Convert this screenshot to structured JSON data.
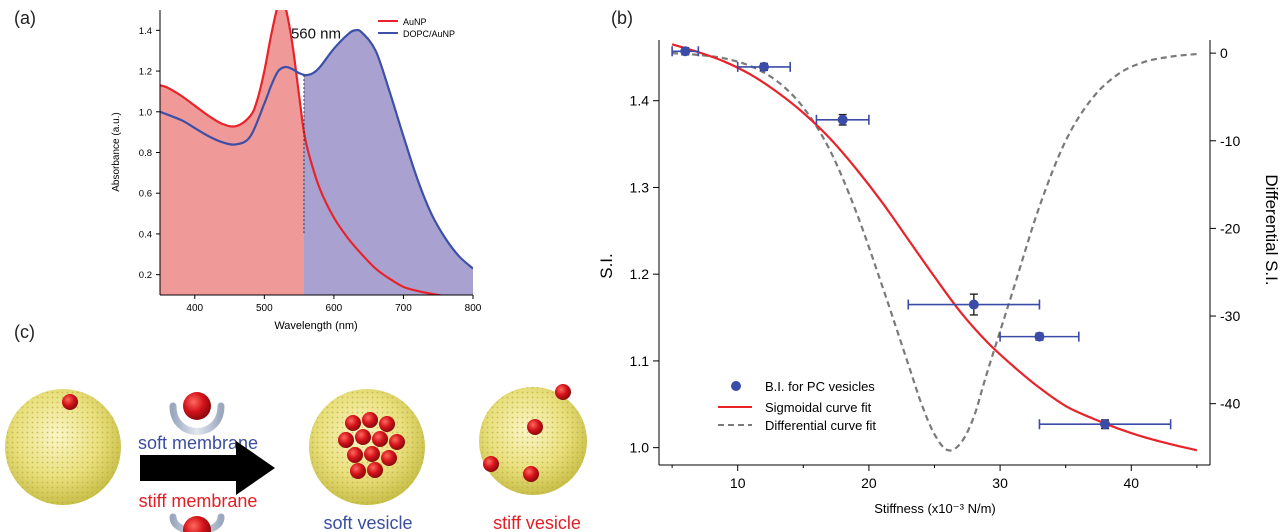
{
  "panels": {
    "a": "(a)",
    "b": "(b)",
    "c": "(c)"
  },
  "chart_data": [
    {
      "type": "area",
      "xlabel": "Wavelength (nm)",
      "ylabel": "Absorbance (a.u.)",
      "xlim": [
        350,
        800
      ],
      "ylim": [
        0.1,
        1.5
      ],
      "xticks": [
        400,
        500,
        600,
        700,
        800
      ],
      "yticks": [
        0.2,
        0.4,
        0.6,
        0.8,
        1.0,
        1.2,
        1.4
      ],
      "annotation": "560 nm",
      "split_x": 557,
      "legend_position": "top-right",
      "series": [
        {
          "name": "AuNP",
          "color": "#e8232a",
          "fill": "#ef9a98",
          "x": [
            350,
            360,
            380,
            400,
            420,
            440,
            460,
            480,
            490,
            500,
            510,
            520,
            525,
            530,
            540,
            550,
            557,
            565,
            580,
            600,
            620,
            640,
            660,
            680,
            700,
            720,
            750,
            780,
            800
          ],
          "y": [
            1.13,
            1.12,
            1.08,
            1.03,
            0.98,
            0.94,
            0.93,
            0.98,
            1.06,
            1.2,
            1.38,
            1.53,
            1.55,
            1.52,
            1.34,
            1.08,
            0.9,
            0.78,
            0.62,
            0.48,
            0.38,
            0.3,
            0.23,
            0.18,
            0.14,
            0.12,
            0.1,
            0.085,
            0.08
          ]
        },
        {
          "name": "DOPC/AuNP",
          "color": "#3d50a8",
          "fill": "#a9a2d1",
          "x": [
            350,
            380,
            400,
            420,
            440,
            460,
            480,
            500,
            510,
            520,
            530,
            540,
            550,
            560,
            570,
            580,
            600,
            620,
            630,
            640,
            660,
            680,
            700,
            720,
            740,
            760,
            780,
            800
          ],
          "y": [
            1.0,
            0.96,
            0.92,
            0.88,
            0.85,
            0.84,
            0.88,
            1.04,
            1.13,
            1.2,
            1.22,
            1.21,
            1.19,
            1.18,
            1.19,
            1.22,
            1.31,
            1.38,
            1.4,
            1.39,
            1.3,
            1.1,
            0.88,
            0.67,
            0.5,
            0.38,
            0.29,
            0.23
          ]
        }
      ]
    },
    {
      "type": "scatter",
      "xlabel": "Stiffness (x10⁻³ N/m)",
      "ylabel": "S.I.",
      "y2label": "Differential S.I.",
      "xlim": [
        4,
        46
      ],
      "ylim": [
        0.98,
        1.47
      ],
      "y2lim": [
        -47,
        1.5
      ],
      "xticks": [
        10,
        20,
        30,
        40
      ],
      "yticks": [
        1.0,
        1.1,
        1.2,
        1.3,
        1.4
      ],
      "y2ticks": [
        0,
        -10,
        -20,
        -30,
        -40
      ],
      "legend_position": "bottom-left",
      "series": [
        {
          "name": "B.I. for PC vesicles",
          "kind": "points",
          "color": "#3b4ba8",
          "x": [
            6,
            12,
            18,
            28,
            33,
            38
          ],
          "y": [
            1.457,
            1.439,
            1.378,
            1.165,
            1.128,
            1.027
          ],
          "xerr": [
            1,
            2,
            2,
            5,
            3,
            5
          ],
          "yerr": [
            0.004,
            0.004,
            0.006,
            0.012,
            0.004,
            0.005
          ]
        },
        {
          "name": "Sigmoidal curve fit",
          "kind": "line",
          "color": "#e8232a",
          "x": [
            5,
            7,
            9,
            11,
            13,
            15,
            17,
            19,
            21,
            23,
            25,
            27,
            29,
            31,
            33,
            35,
            37,
            39,
            41,
            43,
            45
          ],
          "y": [
            1.465,
            1.456,
            1.445,
            1.43,
            1.41,
            1.386,
            1.357,
            1.322,
            1.283,
            1.24,
            1.197,
            1.156,
            1.122,
            1.094,
            1.069,
            1.048,
            1.034,
            1.022,
            1.012,
            1.004,
            0.997
          ]
        },
        {
          "name": "Differential curve fit",
          "kind": "dashed",
          "axis": "y2",
          "color": "#7a7a7a",
          "x": [
            5,
            7,
            9,
            11,
            13,
            15,
            17,
            19,
            21,
            23,
            24,
            25,
            26,
            27,
            28,
            29,
            31,
            33,
            35,
            37,
            39,
            41,
            43,
            45
          ],
          "y": [
            0,
            -0.2,
            -0.6,
            -1.5,
            -3.2,
            -6.2,
            -11,
            -18,
            -26.5,
            -35.5,
            -40,
            -43.5,
            -45.3,
            -44.5,
            -41.5,
            -36.5,
            -27,
            -17.5,
            -10,
            -5.2,
            -2.4,
            -1,
            -0.4,
            -0.1
          ]
        }
      ]
    }
  ],
  "diagram": {
    "soft_membrane": "soft membrane",
    "stiff_membrane": "stiff membrane",
    "soft_vesicle": "soft vesicle",
    "stiff_vesicle": "stiff vesicle",
    "soft_color": "#3b4ea0",
    "stiff_color": "#e31e24"
  }
}
